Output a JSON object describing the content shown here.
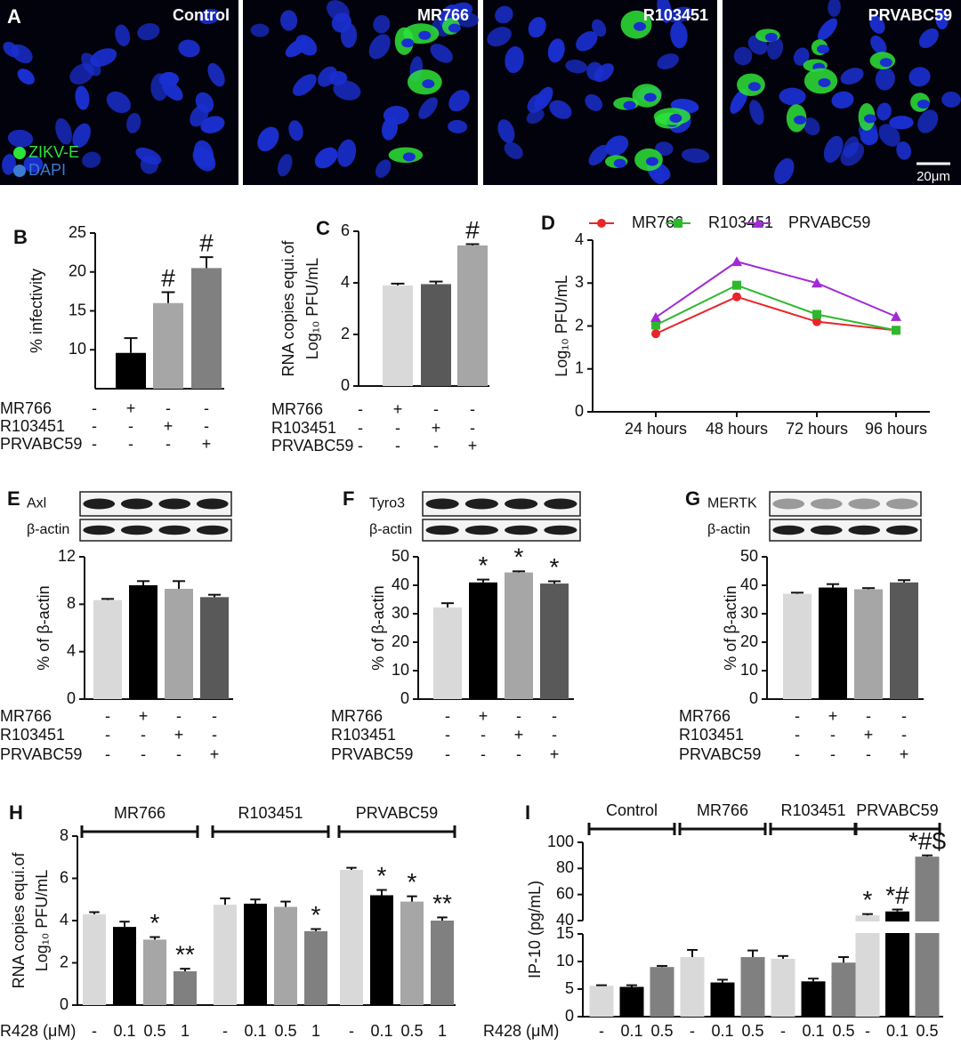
{
  "panel_a": {
    "label": "A",
    "titles": [
      "Control",
      "MR766",
      "R103451",
      "PRVABC59"
    ],
    "legend": [
      "ZIKV-E",
      "DAPI"
    ],
    "scale_bar": "20μm"
  },
  "chart_data": [
    {
      "type": "bar",
      "panel": "B",
      "ylabel": [
        "% infectivity"
      ],
      "values": [
        null,
        9.6,
        16,
        20.5
      ],
      "errors": [
        null,
        1.9,
        1.4,
        1.4
      ],
      "colors": [
        "#d9d9d9",
        "#000000",
        "#a6a6a6",
        "#808080"
      ],
      "value_annotations": [
        null,
        null,
        "#",
        "#"
      ],
      "ylim": [
        5,
        25
      ],
      "yticks": [
        10,
        15,
        20,
        25
      ],
      "conditions": [
        {
          "name": "MR766",
          "signs": [
            "-",
            "+",
            "-",
            "-"
          ]
        },
        {
          "name": "R103451",
          "signs": [
            "-",
            "-",
            "+",
            "-"
          ]
        },
        {
          "name": "PRVABC59",
          "signs": [
            "-",
            "-",
            "-",
            "+"
          ]
        }
      ]
    },
    {
      "type": "bar",
      "panel": "C",
      "ylabel": [
        "RNA copies equi.of",
        "Log₁₀ PFU/mL"
      ],
      "values": [
        null,
        3.9,
        3.95,
        5.45
      ],
      "errors": [
        null,
        0.07,
        0.1,
        0.05
      ],
      "colors": [
        "#d9d9d9",
        "#d9d9d9",
        "#595959",
        "#a6a6a6"
      ],
      "value_annotations": [
        null,
        null,
        null,
        "#"
      ],
      "ylim": [
        0,
        6
      ],
      "yticks": [
        0,
        2,
        4,
        6
      ],
      "conditions": [
        {
          "name": "MR766",
          "signs": [
            "-",
            "+",
            "-",
            "-"
          ]
        },
        {
          "name": "R103451",
          "signs": [
            "-",
            "-",
            "+",
            "-"
          ]
        },
        {
          "name": "PRVABC59",
          "signs": [
            "-",
            "-",
            "-",
            "+"
          ]
        }
      ]
    },
    {
      "type": "line",
      "panel": "D",
      "ylabel": [
        "Log₁₀ PFU/mL"
      ],
      "categories": [
        "24 hours",
        "48 hours",
        "72 hours",
        "96 hours"
      ],
      "ylim": [
        0,
        4
      ],
      "yticks": [
        0,
        1,
        2,
        3,
        4
      ],
      "series": [
        {
          "name": "MR766",
          "color": "#e8262a",
          "marker": "circle",
          "values": [
            1.82,
            2.68,
            2.1,
            1.9
          ]
        },
        {
          "name": "R103451",
          "color": "#2db82d",
          "marker": "square",
          "values": [
            2.02,
            2.95,
            2.27,
            1.9
          ]
        },
        {
          "name": "PRVABC59",
          "color": "#a12ad6",
          "marker": "triangle",
          "values": [
            2.2,
            3.5,
            3.0,
            2.22
          ]
        }
      ]
    },
    {
      "type": "bar",
      "panel": "E",
      "blot": [
        "Axl",
        "β-actin"
      ],
      "ylabel": [
        "% of β-actin"
      ],
      "values": [
        8.35,
        9.6,
        9.3,
        8.6
      ],
      "errors": [
        0.1,
        0.35,
        0.65,
        0.2
      ],
      "colors": [
        "#d9d9d9",
        "#000000",
        "#a6a6a6",
        "#595959"
      ],
      "ylim": [
        0,
        12
      ],
      "yticks": [
        0,
        4,
        8,
        12
      ],
      "conditions": [
        {
          "name": "MR766",
          "signs": [
            "-",
            "+",
            "-",
            "-"
          ]
        },
        {
          "name": "R103451",
          "signs": [
            "-",
            "-",
            "+",
            "-"
          ]
        },
        {
          "name": "PRVABC59",
          "signs": [
            "-",
            "-",
            "-",
            "+"
          ]
        }
      ]
    },
    {
      "type": "bar",
      "panel": "F",
      "blot": [
        "Tyro3",
        "β-actin"
      ],
      "ylabel": [
        "% of β-actin"
      ],
      "values": [
        32.2,
        41,
        44.5,
        40.6
      ],
      "errors": [
        1.5,
        1,
        0.4,
        0.8
      ],
      "colors": [
        "#d9d9d9",
        "#000000",
        "#a6a6a6",
        "#595959"
      ],
      "value_annotations": [
        null,
        "*",
        "*",
        "*"
      ],
      "ylim": [
        0,
        50
      ],
      "yticks": [
        0,
        10,
        20,
        30,
        40,
        50
      ],
      "conditions": [
        {
          "name": "MR766",
          "signs": [
            "-",
            "+",
            "-",
            "-"
          ]
        },
        {
          "name": "R103451",
          "signs": [
            "-",
            "-",
            "+",
            "-"
          ]
        },
        {
          "name": "PRVABC59",
          "signs": [
            "-",
            "-",
            "-",
            "+"
          ]
        }
      ]
    },
    {
      "type": "bar",
      "panel": "G",
      "blot": [
        "MERTK",
        "β-actin"
      ],
      "ylabel": [
        "% of β-actin"
      ],
      "values": [
        37,
        39.2,
        38.6,
        41
      ],
      "errors": [
        0.4,
        1.2,
        0.4,
        0.8
      ],
      "colors": [
        "#d9d9d9",
        "#000000",
        "#a6a6a6",
        "#595959"
      ],
      "ylim": [
        0,
        50
      ],
      "yticks": [
        0,
        10,
        20,
        30,
        40,
        50
      ],
      "conditions": [
        {
          "name": "MR766",
          "signs": [
            "-",
            "+",
            "-",
            "-"
          ]
        },
        {
          "name": "R103451",
          "signs": [
            "-",
            "-",
            "+",
            "-"
          ]
        },
        {
          "name": "PRVABC59",
          "signs": [
            "-",
            "-",
            "-",
            "+"
          ]
        }
      ]
    },
    {
      "type": "bar",
      "panel": "H",
      "ylabel": [
        "RNA copies equi.of",
        "Log₁₀ PFU/mL"
      ],
      "xlabel": "R428 (μM)",
      "groups": [
        "MR766",
        "R103451",
        "PRVABC59"
      ],
      "categories": [
        "-",
        "0.1",
        "0.5",
        "1",
        "-",
        "0.1",
        "0.5",
        "1",
        "-",
        "0.1",
        "0.5",
        "1"
      ],
      "values": [
        4.3,
        3.7,
        3.1,
        1.6,
        4.75,
        4.8,
        4.65,
        3.5,
        6.4,
        5.2,
        4.9,
        4.0
      ],
      "errors": [
        0.1,
        0.25,
        0.12,
        0.12,
        0.3,
        0.2,
        0.25,
        0.1,
        0.1,
        0.25,
        0.25,
        0.15
      ],
      "colors": [
        "#d9d9d9",
        "#000000",
        "#a6a6a6",
        "#808080",
        "#d9d9d9",
        "#000000",
        "#a6a6a6",
        "#808080",
        "#d9d9d9",
        "#000000",
        "#a6a6a6",
        "#808080"
      ],
      "value_annotations": [
        null,
        null,
        "*",
        "**",
        null,
        null,
        null,
        "*",
        null,
        "*",
        "*",
        "**"
      ],
      "ylim": [
        0,
        8
      ],
      "yticks": [
        0,
        2,
        4,
        6,
        8
      ]
    },
    {
      "type": "bar",
      "panel": "I",
      "ylabel": [
        "IP-10 (pg/mL)"
      ],
      "xlabel": "R428 (μM)",
      "groups": [
        "Control",
        "MR766",
        "R103451",
        "PRVABC59"
      ],
      "categories": [
        "-",
        "0.1",
        "0.5",
        "-",
        "0.1",
        "0.5",
        "-",
        "0.1",
        "0.5",
        "-",
        "0.1",
        "0.5"
      ],
      "values": [
        5.6,
        5.4,
        9.0,
        10.8,
        6.2,
        10.8,
        10.5,
        6.4,
        9.8,
        44,
        47,
        89
      ],
      "errors": [
        0.1,
        0.3,
        0.2,
        1.3,
        0.5,
        1.2,
        0.5,
        0.5,
        1.0,
        1.0,
        1.5,
        1.0
      ],
      "colors": [
        "#d9d9d9",
        "#000000",
        "#808080",
        "#d9d9d9",
        "#000000",
        "#808080",
        "#d9d9d9",
        "#000000",
        "#808080",
        "#d9d9d9",
        "#000000",
        "#808080"
      ],
      "value_annotations": [
        null,
        null,
        null,
        null,
        null,
        null,
        null,
        null,
        null,
        "*",
        "*#",
        "*#$"
      ],
      "ylim": [
        0,
        100
      ],
      "y_break": [
        15,
        40
      ],
      "yticks": [
        0,
        5,
        10,
        15,
        40,
        60,
        80,
        100
      ]
    }
  ]
}
